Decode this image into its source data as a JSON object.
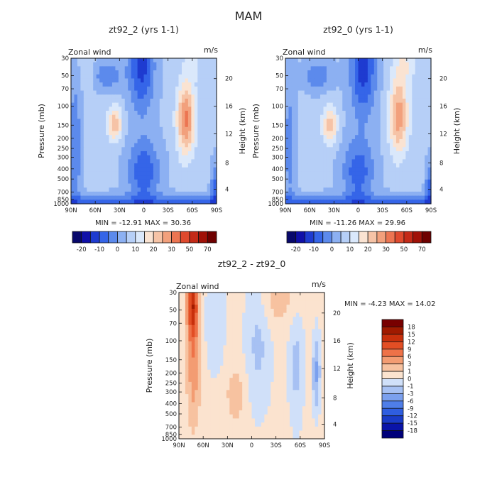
{
  "figure_title": "MAM",
  "chart_data": [
    {
      "type": "heatmap",
      "id": "p1",
      "title": "zt92_2 (yrs 1-1)",
      "variable_label": "Zonal wind",
      "units_label": "m/s",
      "xlabel": "",
      "ylabel": "Pressure (mb)",
      "y2label": "Height (km)",
      "x_ticks": [
        "90N",
        "60N",
        "30N",
        "0",
        "30S",
        "60S",
        "90S"
      ],
      "y_ticks": [
        "30",
        "50",
        "70",
        "100",
        "150",
        "200",
        "250",
        "300",
        "400",
        "500",
        "700",
        "850",
        "1000"
      ],
      "y2_ticks": [
        "20",
        "16",
        "12",
        "8",
        "4"
      ],
      "min_max_text": "MIN = -12.91   MAX = 30.36",
      "min": -12.91,
      "max": 30.36,
      "colorbar": {
        "orientation": "horizontal",
        "tick_labels": [
          "-20",
          "-10",
          "0",
          "10",
          "20",
          "30",
          "50",
          "70"
        ],
        "levels": [
          -20,
          -15,
          -10,
          -5,
          0,
          5,
          10,
          15,
          20,
          25,
          30,
          40,
          50,
          60,
          70
        ],
        "colors": [
          "#08086b",
          "#1010a8",
          "#1e3bd0",
          "#3565e8",
          "#5c8aec",
          "#8cb0f2",
          "#b6cff7",
          "#dae8fb",
          "#fae3d2",
          "#f6c3a6",
          "#f2a07c",
          "#ec7552",
          "#df4a2e",
          "#c42a18",
          "#a01108",
          "#6e0000"
        ]
      },
      "features": [
        {
          "type": "jet",
          "lat": 35,
          "pressure_mb": 200,
          "value_ms": 22
        },
        {
          "type": "jet",
          "lat": -52,
          "pressure_mb": 200,
          "value_ms": 30
        },
        {
          "type": "easterly",
          "lat": 5,
          "pressure_mb": 30,
          "value_ms": -12
        },
        {
          "type": "easterly",
          "lat": 0,
          "pressure_mb": 700,
          "value_ms": -8
        }
      ]
    },
    {
      "type": "heatmap",
      "id": "p2",
      "title": "zt92_0 (yrs 1-1)",
      "variable_label": "Zonal wind",
      "units_label": "m/s",
      "xlabel": "",
      "ylabel": "Pressure (mb)",
      "y2label": "Height (km)",
      "x_ticks": [
        "90N",
        "60N",
        "30N",
        "0",
        "30S",
        "60S",
        "90S"
      ],
      "y_ticks": [
        "30",
        "50",
        "70",
        "100",
        "150",
        "200",
        "250",
        "300",
        "400",
        "500",
        "700",
        "850",
        "1000"
      ],
      "y2_ticks": [
        "20",
        "16",
        "12",
        "8",
        "4"
      ],
      "min_max_text": "MIN = -11.26   MAX = 29.96",
      "min": -11.26,
      "max": 29.96,
      "colorbar": {
        "orientation": "horizontal",
        "tick_labels": [
          "-20",
          "-10",
          "0",
          "10",
          "20",
          "30",
          "50",
          "70"
        ],
        "levels": [
          -20,
          -15,
          -10,
          -5,
          0,
          5,
          10,
          15,
          20,
          25,
          30,
          40,
          50,
          60,
          70
        ],
        "colors": [
          "#08086b",
          "#1010a8",
          "#1e3bd0",
          "#3565e8",
          "#5c8aec",
          "#8cb0f2",
          "#b6cff7",
          "#dae8fb",
          "#fae3d2",
          "#f6c3a6",
          "#f2a07c",
          "#ec7552",
          "#df4a2e",
          "#c42a18",
          "#a01108",
          "#6e0000"
        ]
      },
      "features": [
        {
          "type": "jet",
          "lat": 35,
          "pressure_mb": 200,
          "value_ms": 22
        },
        {
          "type": "jet",
          "lat": -52,
          "pressure_mb": 200,
          "value_ms": 28
        },
        {
          "type": "easterly",
          "lat": -5,
          "pressure_mb": 40,
          "value_ms": -11
        },
        {
          "type": "easterly",
          "lat": 0,
          "pressure_mb": 700,
          "value_ms": -7
        }
      ]
    },
    {
      "type": "heatmap",
      "id": "diff",
      "title": "zt92_2 - zt92_0",
      "variable_label": "Zonal wind",
      "units_label": "m/s",
      "xlabel": "",
      "ylabel": "Pressure (mb)",
      "y2label": "Height (km)",
      "x_ticks": [
        "90N",
        "60N",
        "30N",
        "0",
        "30S",
        "60S",
        "90S"
      ],
      "y_ticks": [
        "30",
        "50",
        "70",
        "100",
        "150",
        "200",
        "250",
        "300",
        "400",
        "500",
        "700",
        "850",
        "1000"
      ],
      "y2_ticks": [
        "20",
        "16",
        "12",
        "8",
        "4"
      ],
      "min_max_text": "MIN =  -4.23   MAX =  14.02",
      "min": -4.23,
      "max": 14.02,
      "colorbar": {
        "orientation": "vertical",
        "tick_labels": [
          "18",
          "15",
          "12",
          "9",
          "6",
          "3",
          "1",
          "0",
          "-1",
          "-3",
          "-6",
          "-9",
          "-12",
          "-15",
          "-18"
        ],
        "levels": [
          -18,
          -15,
          -12,
          -9,
          -6,
          -3,
          -1,
          0,
          1,
          3,
          6,
          9,
          12,
          15,
          18
        ],
        "colors": [
          "#00007a",
          "#0a14a8",
          "#1a3cc8",
          "#2f5ee0",
          "#4f7ee8",
          "#7ba0ee",
          "#a7c1f3",
          "#d0e0f9",
          "#fbe3cf",
          "#f7c2a0",
          "#f39c72",
          "#ee7248",
          "#e24e24",
          "#c8300c",
          "#a01a00",
          "#780000"
        ]
      },
      "features": [
        {
          "type": "positive_anomaly",
          "lat": 72,
          "pressure_mb": 50,
          "value_ms": 12
        },
        {
          "type": "positive_anomaly",
          "lat": 70,
          "pressure_mb": 250,
          "value_ms": 4
        },
        {
          "type": "negative_anomaly",
          "lat": -80,
          "pressure_mb": 350,
          "value_ms": -3
        }
      ]
    }
  ]
}
